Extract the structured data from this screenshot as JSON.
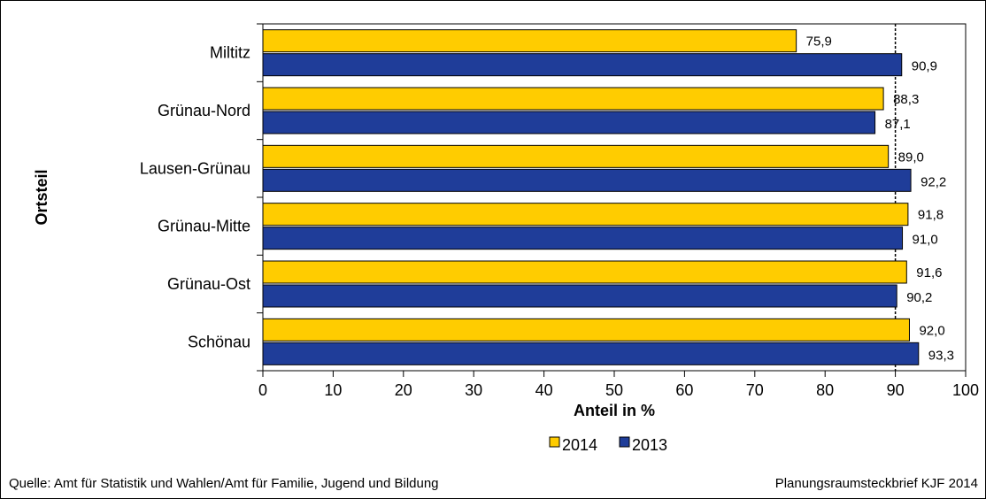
{
  "chart_data": {
    "type": "bar",
    "orientation": "horizontal",
    "categories": [
      "Miltitz",
      "Grünau-Nord",
      "Lausen-Grünau",
      "Grünau-Mitte",
      "Grünau-Ost",
      "Schönau"
    ],
    "series": [
      {
        "name": "2014",
        "color": "#FFCC00",
        "values": [
          75.9,
          88.3,
          89.0,
          91.8,
          91.6,
          92.0
        ],
        "labels": [
          "75,9",
          "88,3",
          "89,0",
          "91,8",
          "91,6",
          "92,0"
        ]
      },
      {
        "name": "2013",
        "color": "#1F3D99",
        "values": [
          90.9,
          87.1,
          92.2,
          91.0,
          90.2,
          93.3
        ],
        "labels": [
          "90,9",
          "87,1",
          "92,2",
          "91,0",
          "90,2",
          "93,3"
        ]
      }
    ],
    "xlabel": "Anteil in %",
    "ylabel": "Ortsteil",
    "xlim": [
      0,
      100
    ],
    "xticks": [
      "0",
      "10",
      "20",
      "30",
      "40",
      "50",
      "60",
      "70",
      "80",
      "90",
      "100"
    ],
    "reference_line": 90,
    "legend_position": "bottom"
  },
  "footer": {
    "source": "Quelle: Amt für Statistik und Wahlen/Amt für Familie,  Jugend und Bildung",
    "credit": "Planungsraumsteckbrief KJF 2014"
  }
}
